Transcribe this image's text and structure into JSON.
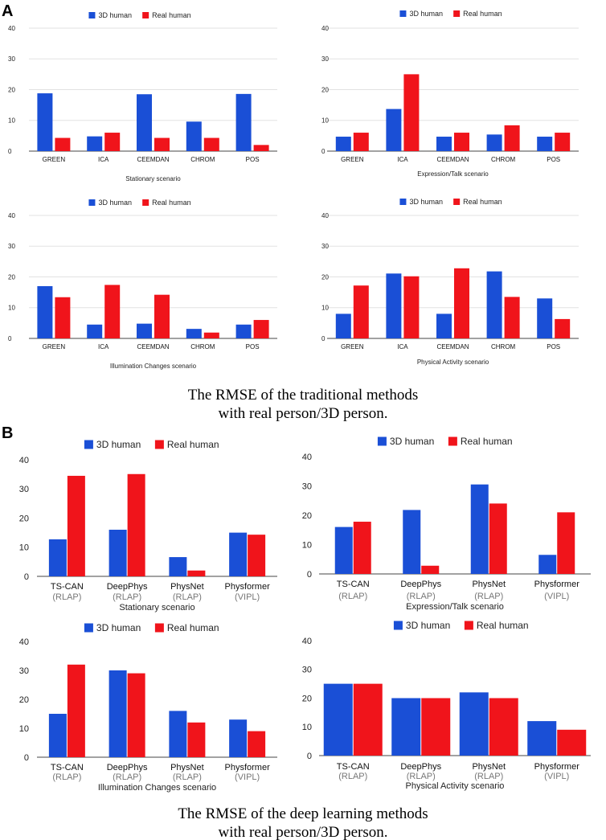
{
  "panel_a_label": "A",
  "panel_b_label": "B",
  "caption_a": [
    "The RMSE of the traditional methods",
    "with real person/3D person."
  ],
  "caption_b": [
    "The RMSE of the deep learning methods",
    "with real person/3D person."
  ],
  "colors": {
    "human3d": "#1a4fd6",
    "real": "#f0141b",
    "grid": "#e2e2e2",
    "axis": "#444444"
  },
  "chart_data": [
    {
      "id": "a1",
      "type": "bar",
      "title": "Stationary scenario",
      "categories": [
        "GREEN",
        "ICA",
        "CEEMDAN",
        "CHROM",
        "POS"
      ],
      "subcategories": [],
      "series": [
        {
          "name": "3D human",
          "values": [
            18.8,
            4.8,
            18.5,
            9.6,
            18.6
          ]
        },
        {
          "name": "Real human",
          "values": [
            4.3,
            6.0,
            4.3,
            4.3,
            2.0
          ]
        }
      ],
      "ylim": [
        0,
        40
      ],
      "yticks": [
        0,
        10,
        20,
        30,
        40
      ],
      "grid": true,
      "legend": "top-center"
    },
    {
      "id": "a2",
      "type": "bar",
      "title": "Expression/Talk scenario",
      "categories": [
        "GREEN",
        "ICA",
        "CEEMDAN",
        "CHROM",
        "POS"
      ],
      "subcategories": [],
      "series": [
        {
          "name": "3D human",
          "values": [
            4.7,
            13.7,
            4.7,
            5.4,
            4.7
          ]
        },
        {
          "name": "Real human",
          "values": [
            6.0,
            25.0,
            6.0,
            8.4,
            6.0
          ]
        }
      ],
      "ylim": [
        0,
        40
      ],
      "yticks": [
        0,
        10,
        20,
        30,
        40
      ],
      "grid": true,
      "legend": "top-center"
    },
    {
      "id": "a3",
      "type": "bar",
      "title": "Illumination Changes scenario",
      "categories": [
        "GREEN",
        "ICA",
        "CEEMDAN",
        "CHROM",
        "POS"
      ],
      "subcategories": [],
      "series": [
        {
          "name": "3D human",
          "values": [
            17.0,
            4.5,
            4.8,
            3.1,
            4.5
          ]
        },
        {
          "name": "Real human",
          "values": [
            13.4,
            17.4,
            14.2,
            1.9,
            6.0
          ]
        }
      ],
      "ylim": [
        0,
        40
      ],
      "yticks": [
        0,
        10,
        20,
        30,
        40
      ],
      "grid": true,
      "legend": "top-center"
    },
    {
      "id": "a4",
      "type": "bar",
      "title": "Physical Activity scenario",
      "categories": [
        "GREEN",
        "ICA",
        "CEEMDAN",
        "CHROM",
        "POS"
      ],
      "subcategories": [],
      "series": [
        {
          "name": "3D human",
          "values": [
            8.0,
            21.1,
            8.0,
            21.8,
            13.0
          ]
        },
        {
          "name": "Real human",
          "values": [
            17.2,
            20.2,
            22.8,
            13.5,
            6.3
          ]
        }
      ],
      "ylim": [
        0,
        40
      ],
      "yticks": [
        0,
        10,
        20,
        30,
        40
      ],
      "grid": true,
      "legend": "top-center"
    },
    {
      "id": "b1",
      "type": "bar",
      "title": "Stationary scenario",
      "categories": [
        "TS-CAN",
        "DeepPhys",
        "PhysNet",
        "Physformer"
      ],
      "subcategories": [
        "(RLAP)",
        "(RLAP)",
        "(RLAP)",
        "(VIPL)"
      ],
      "series": [
        {
          "name": "3D human",
          "values": [
            12.7,
            16.0,
            6.6,
            15.0
          ]
        },
        {
          "name": "Real human",
          "values": [
            34.5,
            35.1,
            2.0,
            14.3
          ]
        }
      ],
      "ylim": [
        0,
        40
      ],
      "yticks": [
        0,
        10,
        20,
        30,
        40
      ],
      "grid": false,
      "legend": "top-center"
    },
    {
      "id": "b2",
      "type": "bar",
      "title": "Expression/Talk scenario",
      "categories": [
        "TS-CAN",
        "DeepPhys",
        "PhysNet",
        "Physformer"
      ],
      "subcategories": [
        "(RLAP)",
        "(RLAP)",
        "(RLAP)",
        "(VIPL)"
      ],
      "series": [
        {
          "name": "3D human",
          "values": [
            16.0,
            21.8,
            30.5,
            6.5
          ]
        },
        {
          "name": "Real human",
          "values": [
            17.8,
            2.8,
            24.0,
            21.0
          ]
        }
      ],
      "ylim": [
        0,
        40
      ],
      "yticks": [
        0,
        10,
        20,
        30,
        40
      ],
      "grid": false,
      "legend": "top-center"
    },
    {
      "id": "b3",
      "type": "bar",
      "title": "Illumination Changes scenario",
      "categories": [
        "TS-CAN",
        "DeepPhys",
        "PhysNet",
        "Physformer"
      ],
      "subcategories": [
        "(RLAP)",
        "(RLAP)",
        "(RLAP)",
        "(VIPL)"
      ],
      "series": [
        {
          "name": "3D human",
          "values": [
            15.0,
            30.0,
            16.0,
            13.0
          ]
        },
        {
          "name": "Real human",
          "values": [
            32.0,
            29.0,
            12.0,
            9.0
          ]
        }
      ],
      "ylim": [
        0,
        40
      ],
      "yticks": [
        0,
        10,
        20,
        30,
        40
      ],
      "grid": false,
      "legend": "top-center"
    },
    {
      "id": "b4",
      "type": "bar",
      "title": "Physical Activity scenario",
      "categories": [
        "TS-CAN",
        "DeepPhys",
        "PhysNet",
        "Physformer"
      ],
      "subcategories": [
        "(RLAP)",
        "(RLAP)",
        "(RLAP)",
        "(VIPL)"
      ],
      "series": [
        {
          "name": "3D human",
          "values": [
            25.0,
            20.0,
            22.0,
            12.0
          ]
        },
        {
          "name": "Real human",
          "values": [
            25.0,
            20.0,
            20.0,
            9.0
          ]
        }
      ],
      "ylim": [
        0,
        40
      ],
      "yticks": [
        0,
        10,
        20,
        30,
        40
      ],
      "grid": false,
      "legend": "top-center"
    }
  ]
}
